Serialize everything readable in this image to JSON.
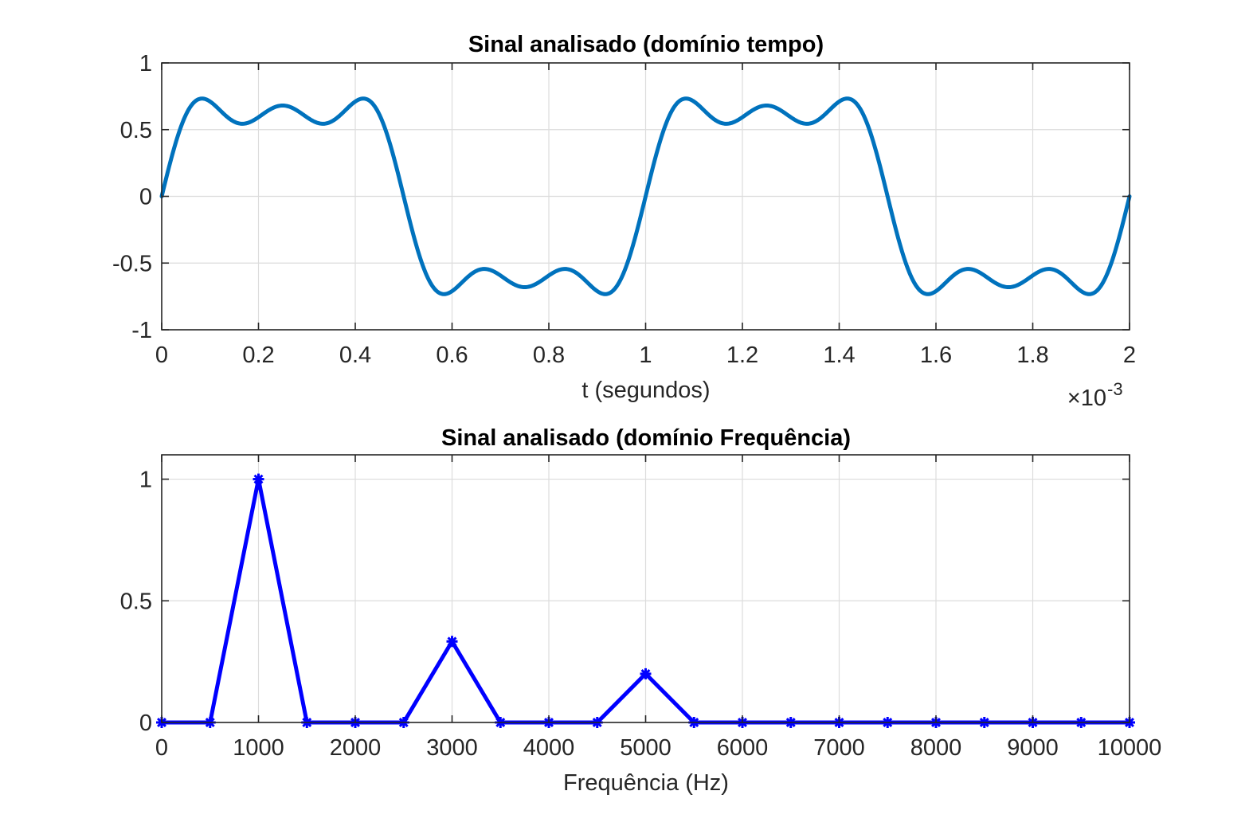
{
  "chart_data": [
    {
      "type": "line",
      "title": "Sinal analisado (domínio tempo)",
      "xlabel": "t (segundos)",
      "ylabel": "",
      "x_exponent_label": "×10",
      "x_exponent_power": "-3",
      "xlim": [
        0,
        0.002
      ],
      "ylim": [
        -1,
        1
      ],
      "grid": true,
      "xticks": [
        0,
        0.0002,
        0.0004,
        0.0006,
        0.0008,
        0.001,
        0.0012,
        0.0014,
        0.0016,
        0.0018,
        0.002
      ],
      "xtick_labels": [
        "0",
        "0.2",
        "0.4",
        "0.6",
        "0.8",
        "1",
        "1.2",
        "1.4",
        "1.6",
        "1.8",
        "2"
      ],
      "yticks": [
        -1,
        -0.5,
        0,
        0.5,
        1
      ],
      "ytick_labels": [
        "-1",
        "-0.5",
        "0",
        "0.5",
        "1"
      ],
      "color": "#0072bd",
      "series": [
        {
          "fundamental_hz": 1000,
          "harmonics": [
            {
              "frequency_hz": 1000,
              "amplitude": 1
            },
            {
              "frequency_hz": 3000,
              "amplitude": 0.3333
            },
            {
              "frequency_hz": 5000,
              "amplitude": 0.2
            }
          ],
          "scale": 0.7854,
          "x": [
            0,
            8e-05,
            0.000167,
            0.00025,
            0.000333,
            0.000417,
            0.0005,
            0.000583,
            0.000667,
            0.00075,
            0.000833,
            0.000917,
            0.001,
            0.00108,
            0.001167,
            0.00125,
            0.001333,
            0.001417,
            0.0015,
            0.001583,
            0.001667,
            0.00175,
            0.001833,
            0.001917,
            0.002
          ],
          "y": [
            0,
            0.93,
            0.7,
            0.87,
            0.7,
            0.93,
            0,
            -0.93,
            -0.7,
            -0.87,
            -0.7,
            -0.93,
            0,
            0.93,
            0.7,
            0.87,
            0.7,
            0.93,
            0,
            -0.93,
            -0.7,
            -0.87,
            -0.7,
            -0.93,
            -0.1
          ]
        }
      ]
    },
    {
      "type": "line",
      "title": "Sinal analisado (domínio Frequência)",
      "xlabel": "Frequência (Hz)",
      "ylabel": "",
      "xlim": [
        0,
        10000
      ],
      "ylim": [
        0,
        1.1
      ],
      "grid": true,
      "xticks": [
        0,
        1000,
        2000,
        3000,
        4000,
        5000,
        6000,
        7000,
        8000,
        9000,
        10000
      ],
      "xtick_labels": [
        "0",
        "1000",
        "2000",
        "3000",
        "4000",
        "5000",
        "6000",
        "7000",
        "8000",
        "9000",
        "10000"
      ],
      "yticks": [
        0,
        0.5,
        1
      ],
      "ytick_labels": [
        "0",
        "0.5",
        "1"
      ],
      "color": "#0000ff",
      "marker": "asterisk",
      "series": [
        {
          "x": [
            0,
            500,
            1000,
            1500,
            2000,
            2500,
            3000,
            3500,
            4000,
            4500,
            5000,
            5500,
            6000,
            6500,
            7000,
            7500,
            8000,
            8500,
            9000,
            9500,
            10000
          ],
          "y": [
            0,
            0,
            1,
            0,
            0,
            0,
            0.333,
            0,
            0,
            0,
            0.2,
            0,
            0,
            0,
            0,
            0,
            0,
            0,
            0,
            0,
            0
          ]
        }
      ]
    }
  ]
}
